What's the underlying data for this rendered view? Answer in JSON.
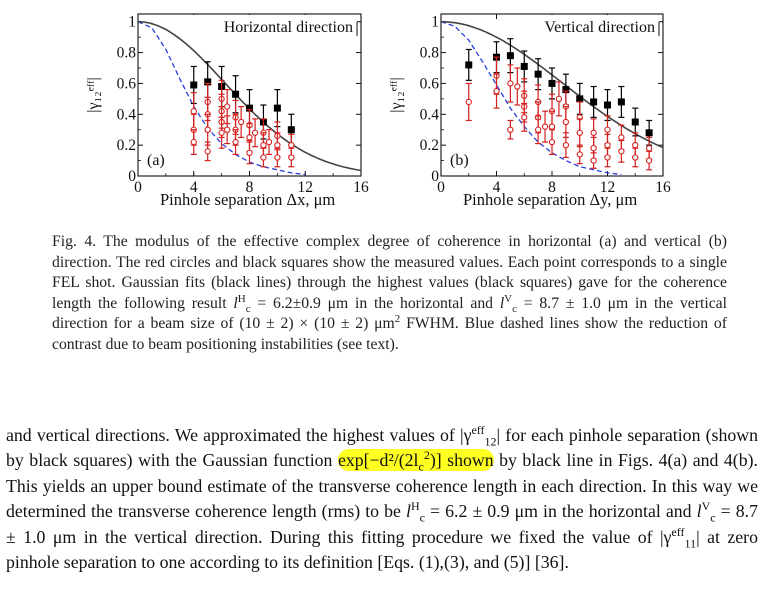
{
  "chart_data": [
    {
      "type": "scatter",
      "panel_tag": "(a)",
      "title": "Horizontal direction",
      "xlabel": "Pinhole separation Δx, μm",
      "ylabel": "|γ₁₂ᵉᶠᶠ|",
      "xlim": [
        0,
        16
      ],
      "ylim": [
        0,
        1.05
      ],
      "xticks": [
        0,
        4,
        8,
        12,
        16
      ],
      "yticks": [
        0,
        0.2,
        0.4,
        0.6,
        0.8,
        1
      ],
      "ytick_labels": [
        "0",
        "0.2",
        "0.4",
        "0.6",
        "0.8",
        "1"
      ],
      "gauss_lc": 6.2,
      "blue_curve": [
        [
          0,
          1.0
        ],
        [
          1,
          0.96
        ],
        [
          2,
          0.82
        ],
        [
          3,
          0.63
        ],
        [
          4,
          0.45
        ],
        [
          5,
          0.31
        ],
        [
          6,
          0.21
        ],
        [
          7,
          0.14
        ],
        [
          8,
          0.09
        ],
        [
          9,
          0.06
        ],
        [
          10,
          0.04
        ],
        [
          11,
          0.02
        ],
        [
          12,
          0.01
        ]
      ],
      "series": [
        {
          "name": "black squares",
          "color": "#000000",
          "marker": "square",
          "points": [
            [
              4,
              0.59,
              0.12
            ],
            [
              5,
              0.61,
              0.13
            ],
            [
              6,
              0.58,
              0.13
            ],
            [
              7,
              0.53,
              0.12
            ],
            [
              8,
              0.44,
              0.12
            ],
            [
              9,
              0.35,
              0.11
            ],
            [
              10,
              0.44,
              0.12
            ],
            [
              11,
              0.3,
              0.1
            ]
          ]
        },
        {
          "name": "red circles",
          "color": "#d61f1f",
          "marker": "circle",
          "points": [
            [
              4,
              0.42,
              0.12
            ],
            [
              4,
              0.3,
              0.1
            ],
            [
              4,
              0.22,
              0.08
            ],
            [
              5,
              0.16,
              0.06
            ],
            [
              5,
              0.48,
              0.12
            ],
            [
              5,
              0.4,
              0.11
            ],
            [
              5,
              0.3,
              0.1
            ],
            [
              6,
              0.5,
              0.12
            ],
            [
              6,
              0.42,
              0.11
            ],
            [
              6,
              0.35,
              0.1
            ],
            [
              6,
              0.28,
              0.1
            ],
            [
              6.4,
              0.45,
              0.11
            ],
            [
              6.4,
              0.3,
              0.09
            ],
            [
              7,
              0.38,
              0.11
            ],
            [
              7,
              0.3,
              0.1
            ],
            [
              7,
              0.22,
              0.08
            ],
            [
              7.4,
              0.35,
              0.1
            ],
            [
              8,
              0.33,
              0.1
            ],
            [
              8,
              0.25,
              0.09
            ],
            [
              8,
              0.15,
              0.07
            ],
            [
              8.4,
              0.28,
              0.09
            ],
            [
              9,
              0.28,
              0.09
            ],
            [
              9,
              0.2,
              0.08
            ],
            [
              9,
              0.12,
              0.06
            ],
            [
              9.4,
              0.22,
              0.08
            ],
            [
              10,
              0.26,
              0.09
            ],
            [
              10,
              0.2,
              0.08
            ],
            [
              10,
              0.12,
              0.06
            ],
            [
              11,
              0.2,
              0.07
            ],
            [
              11,
              0.12,
              0.06
            ]
          ]
        }
      ]
    },
    {
      "type": "scatter",
      "panel_tag": "(b)",
      "title": "Vertical direction",
      "xlabel": "Pinhole separation Δy, μm",
      "ylabel": "|γ₁₂ᵉᶠᶠ|",
      "xlim": [
        0,
        16
      ],
      "ylim": [
        0,
        1.05
      ],
      "xticks": [
        0,
        4,
        8,
        12,
        16
      ],
      "yticks": [
        0,
        0.2,
        0.4,
        0.6,
        0.8,
        1
      ],
      "ytick_labels": [
        "0",
        "0.2",
        "0.4",
        "0.6",
        "0.8",
        "1"
      ],
      "gauss_lc": 8.7,
      "blue_curve": [
        [
          0,
          1.0
        ],
        [
          1,
          0.97
        ],
        [
          2,
          0.88
        ],
        [
          3,
          0.74
        ],
        [
          4,
          0.59
        ],
        [
          5,
          0.44
        ],
        [
          6,
          0.32
        ],
        [
          7,
          0.22
        ],
        [
          8,
          0.15
        ],
        [
          9,
          0.1
        ],
        [
          10,
          0.06
        ],
        [
          11,
          0.04
        ],
        [
          12,
          0.02
        ],
        [
          13,
          0.01
        ]
      ],
      "series": [
        {
          "name": "black squares",
          "color": "#000000",
          "marker": "square",
          "points": [
            [
              2,
              0.72,
              0.1
            ],
            [
              4,
              0.77,
              0.1
            ],
            [
              5,
              0.78,
              0.11
            ],
            [
              6,
              0.71,
              0.1
            ],
            [
              7,
              0.66,
              0.1
            ],
            [
              8,
              0.6,
              0.1
            ],
            [
              9,
              0.56,
              0.1
            ],
            [
              10,
              0.5,
              0.1
            ],
            [
              11,
              0.48,
              0.1
            ],
            [
              12,
              0.46,
              0.1
            ],
            [
              13,
              0.48,
              0.1
            ],
            [
              14,
              0.35,
              0.09
            ],
            [
              15,
              0.28,
              0.08
            ]
          ]
        },
        {
          "name": "red circles",
          "color": "#d61f1f",
          "marker": "circle",
          "points": [
            [
              2,
              0.48,
              0.12
            ],
            [
              4,
              0.65,
              0.12
            ],
            [
              4,
              0.55,
              0.11
            ],
            [
              5,
              0.3,
              0.06
            ],
            [
              5,
              0.6,
              0.12
            ],
            [
              5.5,
              0.58,
              0.12
            ],
            [
              6,
              0.52,
              0.11
            ],
            [
              6,
              0.45,
              0.1
            ],
            [
              6,
              0.38,
              0.09
            ],
            [
              7,
              0.48,
              0.11
            ],
            [
              7,
              0.38,
              0.1
            ],
            [
              7,
              0.3,
              0.09
            ],
            [
              7.5,
              0.32,
              0.1
            ],
            [
              8,
              0.42,
              0.11
            ],
            [
              8,
              0.32,
              0.1
            ],
            [
              8,
              0.22,
              0.08
            ],
            [
              8.5,
              0.5,
              0.11
            ],
            [
              9,
              0.45,
              0.1
            ],
            [
              9,
              0.35,
              0.1
            ],
            [
              9,
              0.2,
              0.08
            ],
            [
              10,
              0.38,
              0.1
            ],
            [
              10,
              0.28,
              0.09
            ],
            [
              10,
              0.14,
              0.06
            ],
            [
              11,
              0.28,
              0.09
            ],
            [
              11,
              0.18,
              0.07
            ],
            [
              11,
              0.1,
              0.05
            ],
            [
              12,
              0.3,
              0.09
            ],
            [
              12,
              0.2,
              0.07
            ],
            [
              12,
              0.12,
              0.06
            ],
            [
              13,
              0.25,
              0.08
            ],
            [
              13,
              0.16,
              0.07
            ],
            [
              14,
              0.2,
              0.08
            ],
            [
              14,
              0.12,
              0.06
            ],
            [
              15,
              0.18,
              0.07
            ],
            [
              15,
              0.1,
              0.06
            ]
          ]
        }
      ]
    }
  ],
  "caption": {
    "p1": "Fig. 4. The modulus of the effective complex degree of coherence in horizontal (a) and vertical (b) direction. The red circles and black squares show the measured values. Each point corresponds to a single FEL shot. Gaussian fits (black lines) through the highest values (black squares) gave for the coherence length the following result ",
    "lc": "l",
    "sub_c": "c",
    "sup_H": "H",
    "sup_V": "V",
    "eq1": " = 6.2±0.9 μm",
    "p2": " in the horizontal and ",
    "eq2": " = 8.7 ± 1.0 μm in the vertical direction for a beam size of (10 ± 2) × (10 ± 2) μm",
    "sup_2": "2",
    "p3": " FWHM. Blue dashed lines show the reduction of contrast due to beam positioning instabilities (see text)."
  },
  "body": {
    "s1": "and vertical directions. We approximated the highest values of |γ",
    "sup_eff": "eff",
    "sub_12": "12",
    "s2": "| for each pinhole separation (shown by black squares) with the Gaussian function ",
    "hl": "exp[−d²/(2l",
    "hl_sub": "c",
    "hl_sup": "2",
    "hl_end": ")] shown",
    "s3": " by black line in Figs. 4(a) and 4(b). This yields an upper bound estimate of the transverse coherence length in each direction. In this way we determined the transverse coherence length (rms) to be ",
    "lc": "l",
    "sub_c": "c",
    "sup_H": "H",
    "sup_V": "V",
    "eq1": " = 6.2 ± 0.9 μm in the horizontal and ",
    "eq2": " = 8.7 ± 1.0 μm in the vertical direction. During this fitting procedure we fixed the value of |γ",
    "sub_11": "11",
    "s4": "| at zero pinhole separation to one according to its definition [Eqs. (1),(3), and (5)] [36]."
  }
}
